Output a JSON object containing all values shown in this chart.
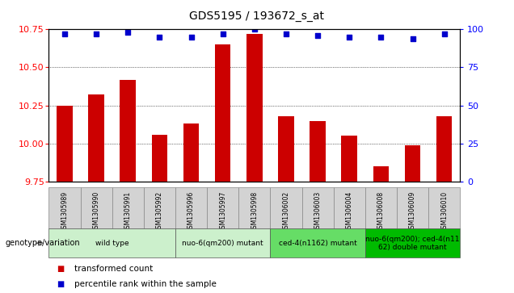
{
  "title": "GDS5195 / 193672_s_at",
  "samples": [
    "GSM1305989",
    "GSM1305990",
    "GSM1305991",
    "GSM1305992",
    "GSM1305996",
    "GSM1305997",
    "GSM1305998",
    "GSM1306002",
    "GSM1306003",
    "GSM1306004",
    "GSM1306008",
    "GSM1306009",
    "GSM1306010"
  ],
  "transformed_count": [
    10.25,
    10.32,
    10.42,
    10.06,
    10.13,
    10.65,
    10.72,
    10.18,
    10.15,
    10.05,
    9.85,
    9.99,
    10.18
  ],
  "percentile": [
    97,
    97,
    98,
    95,
    95,
    97,
    100,
    97,
    96,
    95,
    95,
    94,
    97
  ],
  "ymin": 9.75,
  "ymax": 10.75,
  "yticks": [
    9.75,
    10.0,
    10.25,
    10.5,
    10.75
  ],
  "right_yticks": [
    0,
    25,
    50,
    75,
    100
  ],
  "groups": [
    {
      "label": "wild type",
      "indices": [
        0,
        1,
        2,
        3
      ],
      "color": "#ccf0cc"
    },
    {
      "label": "nuo-6(qm200) mutant",
      "indices": [
        4,
        5,
        6
      ],
      "color": "#ccf0cc"
    },
    {
      "label": "ced-4(n1162) mutant",
      "indices": [
        7,
        8,
        9
      ],
      "color": "#66dd66"
    },
    {
      "label": "nuo-6(qm200); ced-4(n11\n62) double mutant",
      "indices": [
        10,
        11,
        12
      ],
      "color": "#00bb00"
    }
  ],
  "bar_color": "#cc0000",
  "dot_color": "#0000cc",
  "bar_width": 0.5,
  "baseline": 9.75,
  "sample_bg": "#d3d3d3",
  "legend_items": [
    {
      "color": "#cc0000",
      "label": "transformed count"
    },
    {
      "color": "#0000cc",
      "label": "percentile rank within the sample"
    }
  ]
}
